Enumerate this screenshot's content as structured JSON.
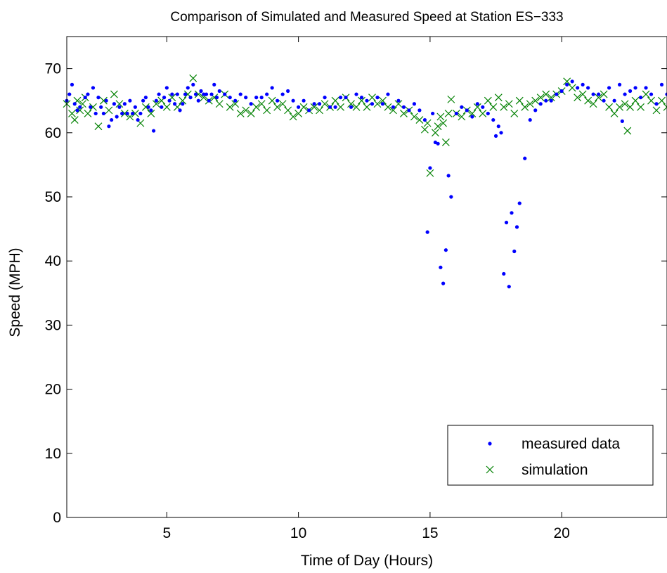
{
  "chart_data": {
    "type": "scatter",
    "title": "Comparison of Simulated and Measured Speed at Station ES−333",
    "xlabel": "Time of Day (Hours)",
    "ylabel": "Speed (MPH)",
    "xlim": [
      1.2,
      24
    ],
    "ylim": [
      0,
      75
    ],
    "xticks": [
      5,
      10,
      15,
      20
    ],
    "yticks": [
      0,
      10,
      20,
      30,
      40,
      50,
      60,
      70
    ],
    "grid": false,
    "legend_position": "bottom-right",
    "colors": {
      "measured": "#0000ff",
      "simulation": "#008000"
    },
    "series": [
      {
        "name": "measured data",
        "marker": "dot",
        "x": [
          1.2,
          1.3,
          1.4,
          1.5,
          1.6,
          1.7,
          1.9,
          2.0,
          2.1,
          2.2,
          2.3,
          2.4,
          2.5,
          2.6,
          2.7,
          2.8,
          2.9,
          3.0,
          3.1,
          3.2,
          3.3,
          3.4,
          3.5,
          3.6,
          3.7,
          3.8,
          3.9,
          4.0,
          4.1,
          4.2,
          4.3,
          4.4,
          4.5,
          4.6,
          4.7,
          4.8,
          4.9,
          5.0,
          5.1,
          5.2,
          5.3,
          5.4,
          5.5,
          5.6,
          5.7,
          5.8,
          5.9,
          6.0,
          6.1,
          6.2,
          6.3,
          6.4,
          6.5,
          6.6,
          6.7,
          6.8,
          6.9,
          7.0,
          7.2,
          7.4,
          7.6,
          7.8,
          8.0,
          8.2,
          8.4,
          8.6,
          8.8,
          9.0,
          9.2,
          9.4,
          9.6,
          9.8,
          10.0,
          10.2,
          10.4,
          10.6,
          10.8,
          11.0,
          11.2,
          11.4,
          11.6,
          11.8,
          12.0,
          12.2,
          12.4,
          12.6,
          12.8,
          13.0,
          13.2,
          13.4,
          13.6,
          13.8,
          14.0,
          14.2,
          14.4,
          14.6,
          14.8,
          14.9,
          15.0,
          15.1,
          15.2,
          15.3,
          15.4,
          15.5,
          15.6,
          15.7,
          15.8,
          16.0,
          16.2,
          16.4,
          16.6,
          16.8,
          17.0,
          17.2,
          17.4,
          17.5,
          17.6,
          17.7,
          17.8,
          17.9,
          18.0,
          18.1,
          18.2,
          18.3,
          18.4,
          18.6,
          18.8,
          19.0,
          19.2,
          19.4,
          19.6,
          19.8,
          20.0,
          20.2,
          20.4,
          20.6,
          20.8,
          21.0,
          21.2,
          21.4,
          21.6,
          21.8,
          22.0,
          22.2,
          22.3,
          22.4,
          22.6,
          22.8,
          23.0,
          23.2,
          23.4,
          23.6,
          23.8,
          24.0
        ],
        "y": [
          65.0,
          66.0,
          67.5,
          64.5,
          63.5,
          64.0,
          65.5,
          66.0,
          64.0,
          67.0,
          63.0,
          65.5,
          64.0,
          63.0,
          65.0,
          61.0,
          62.0,
          64.5,
          62.5,
          64.0,
          63.0,
          64.5,
          63.0,
          65.0,
          63.0,
          64.0,
          62.0,
          63.0,
          65.0,
          65.5,
          64.0,
          63.5,
          60.3,
          65.0,
          66.0,
          64.0,
          65.5,
          67.0,
          65.0,
          66.0,
          64.5,
          66.0,
          63.5,
          64.5,
          66.0,
          67.0,
          65.5,
          67.5,
          66.0,
          65.0,
          66.5,
          66.0,
          66.0,
          65.0,
          66.0,
          67.5,
          65.5,
          66.5,
          66.0,
          65.5,
          65.0,
          66.0,
          65.5,
          64.5,
          65.5,
          65.5,
          66.0,
          67.0,
          65.0,
          66.0,
          66.5,
          65.0,
          64.0,
          65.0,
          63.5,
          64.5,
          64.5,
          65.5,
          64.0,
          64.0,
          65.5,
          65.5,
          64.0,
          66.0,
          65.5,
          65.0,
          64.5,
          65.5,
          64.5,
          66.0,
          64.0,
          65.0,
          64.0,
          63.5,
          64.5,
          63.5,
          62.0,
          44.5,
          54.5,
          63.0,
          58.5,
          58.3,
          39.0,
          36.5,
          41.7,
          53.3,
          50.0,
          63.0,
          64.0,
          63.5,
          62.5,
          64.5,
          64.0,
          63.0,
          62.0,
          59.5,
          61.0,
          60.0,
          38.0,
          46.0,
          36.0,
          47.5,
          41.5,
          45.3,
          49.0,
          56.0,
          62.0,
          63.5,
          64.5,
          65.0,
          65.0,
          66.0,
          66.5,
          67.5,
          68.0,
          67.0,
          67.5,
          67.0,
          66.0,
          66.0,
          65.0,
          67.0,
          65.0,
          67.5,
          61.8,
          66.0,
          66.5,
          67.0,
          65.5,
          67.0,
          66.0,
          64.5,
          67.5,
          66.0
        ]
      },
      {
        "name": "simulation",
        "marker": "x",
        "x": [
          1.2,
          1.4,
          1.5,
          1.6,
          1.7,
          1.8,
          1.9,
          2.0,
          2.2,
          2.4,
          2.6,
          2.8,
          3.0,
          3.2,
          3.4,
          3.6,
          3.8,
          4.0,
          4.2,
          4.4,
          4.6,
          4.8,
          5.0,
          5.2,
          5.4,
          5.6,
          5.8,
          6.0,
          6.2,
          6.4,
          6.6,
          6.8,
          7.0,
          7.2,
          7.4,
          7.6,
          7.8,
          8.0,
          8.2,
          8.4,
          8.6,
          8.8,
          9.0,
          9.2,
          9.4,
          9.6,
          9.8,
          10.0,
          10.2,
          10.4,
          10.6,
          10.8,
          11.0,
          11.2,
          11.4,
          11.6,
          11.8,
          12.0,
          12.2,
          12.4,
          12.6,
          12.8,
          13.0,
          13.2,
          13.4,
          13.6,
          13.8,
          14.0,
          14.2,
          14.4,
          14.6,
          14.8,
          14.9,
          15.0,
          15.2,
          15.3,
          15.4,
          15.5,
          15.6,
          15.7,
          15.8,
          16.0,
          16.2,
          16.4,
          16.6,
          16.8,
          17.0,
          17.2,
          17.4,
          17.6,
          17.8,
          18.0,
          18.2,
          18.4,
          18.6,
          18.8,
          19.0,
          19.2,
          19.4,
          19.6,
          19.8,
          20.0,
          20.2,
          20.4,
          20.6,
          20.8,
          21.0,
          21.2,
          21.4,
          21.6,
          21.8,
          22.0,
          22.2,
          22.4,
          22.5,
          22.6,
          22.8,
          23.0,
          23.2,
          23.4,
          23.6,
          23.8,
          24.0
        ],
        "y": [
          64.5,
          63.0,
          62.0,
          65.0,
          63.5,
          64.5,
          65.5,
          63.0,
          64.0,
          61.0,
          65.0,
          63.5,
          66.0,
          64.5,
          63.0,
          62.5,
          63.0,
          61.5,
          64.0,
          63.0,
          64.5,
          65.0,
          64.0,
          65.5,
          64.0,
          65.0,
          66.0,
          68.5,
          66.0,
          65.5,
          65.0,
          65.5,
          64.5,
          66.0,
          64.0,
          64.5,
          63.0,
          63.5,
          63.0,
          64.0,
          64.5,
          63.5,
          65.0,
          64.0,
          64.5,
          63.5,
          62.5,
          63.0,
          64.0,
          63.5,
          64.0,
          63.5,
          64.5,
          64.0,
          65.0,
          64.0,
          65.5,
          64.5,
          64.0,
          65.0,
          64.0,
          65.5,
          64.5,
          65.0,
          64.0,
          63.5,
          64.5,
          63.0,
          63.5,
          62.5,
          62.0,
          60.5,
          61.5,
          53.7,
          60.0,
          61.0,
          62.5,
          61.5,
          58.5,
          63.0,
          65.2,
          63.0,
          62.5,
          63.5,
          63.0,
          64.0,
          63.0,
          65.0,
          64.0,
          65.5,
          64.0,
          64.5,
          63.0,
          65.0,
          64.0,
          64.5,
          65.0,
          65.5,
          66.0,
          65.5,
          66.0,
          66.5,
          68.0,
          67.0,
          65.5,
          66.0,
          65.0,
          64.5,
          65.5,
          66.0,
          64.0,
          63.0,
          64.0,
          64.5,
          60.3,
          64.0,
          65.0,
          64.0,
          66.0,
          65.0,
          63.5,
          65.0,
          64.0
        ]
      }
    ]
  }
}
